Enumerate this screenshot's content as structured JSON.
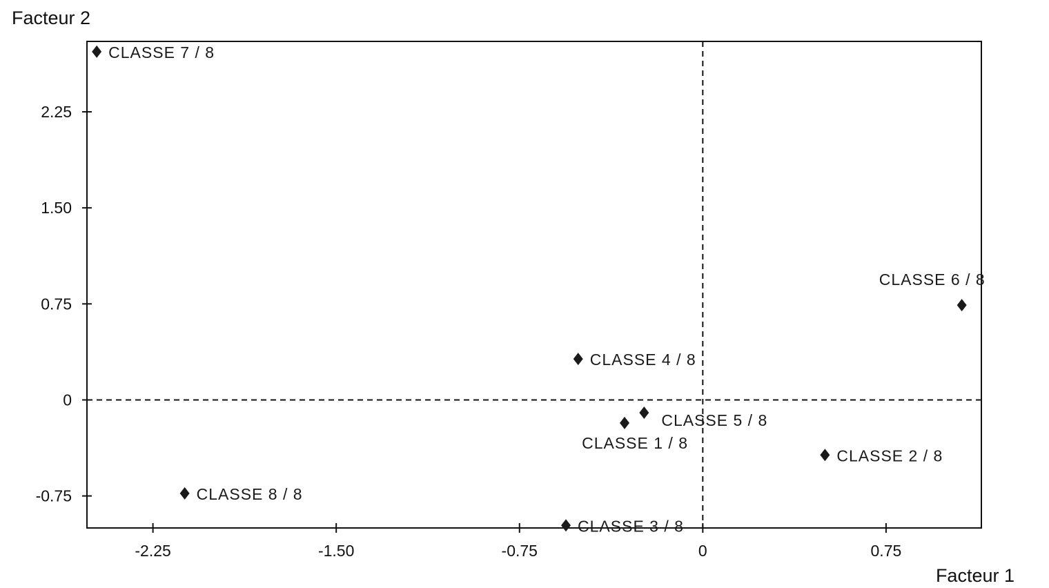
{
  "chart_data": {
    "type": "scatter",
    "xlabel": "Facteur 1",
    "ylabel": "Facteur 2",
    "xlim": [
      -2.52,
      1.14
    ],
    "ylim": [
      -1.0,
      2.8
    ],
    "xticks": [
      -2.25,
      -1.5,
      -0.75,
      0,
      0.75
    ],
    "xtick_labels": [
      "-2.25",
      "-1.50",
      "-0.75",
      "0",
      "0.75"
    ],
    "yticks": [
      -0.75,
      0,
      0.75,
      1.5,
      2.25
    ],
    "ytick_labels": [
      "-0.75",
      "0",
      "0.75",
      "1.50",
      "2.25"
    ],
    "reference_lines": [
      {
        "orientation": "vertical",
        "value": 0,
        "style": "dashed"
      },
      {
        "orientation": "horizontal",
        "value": 0,
        "style": "dashed"
      }
    ],
    "grid": false,
    "marker": "diamond",
    "points": [
      {
        "label": "CLASSE 7 / 8",
        "x": -2.48,
        "y": 2.72,
        "label_pos": "right"
      },
      {
        "label": "CLASSE 6 / 8",
        "x": 1.06,
        "y": 0.74,
        "label_pos": "above"
      },
      {
        "label": "CLASSE 4 / 8",
        "x": -0.51,
        "y": 0.32,
        "label_pos": "right"
      },
      {
        "label": "CLASSE 5 / 8",
        "x": -0.24,
        "y": -0.1,
        "label_pos": "right-below"
      },
      {
        "label": "CLASSE 1 / 8",
        "x": -0.32,
        "y": -0.18,
        "label_pos": "below"
      },
      {
        "label": "CLASSE 2 / 8",
        "x": 0.5,
        "y": -0.43,
        "label_pos": "right"
      },
      {
        "label": "CLASSE 8 / 8",
        "x": -2.12,
        "y": -0.73,
        "label_pos": "right"
      },
      {
        "label": "CLASSE 3 / 8",
        "x": -0.56,
        "y": -0.98,
        "label_pos": "right"
      }
    ]
  }
}
